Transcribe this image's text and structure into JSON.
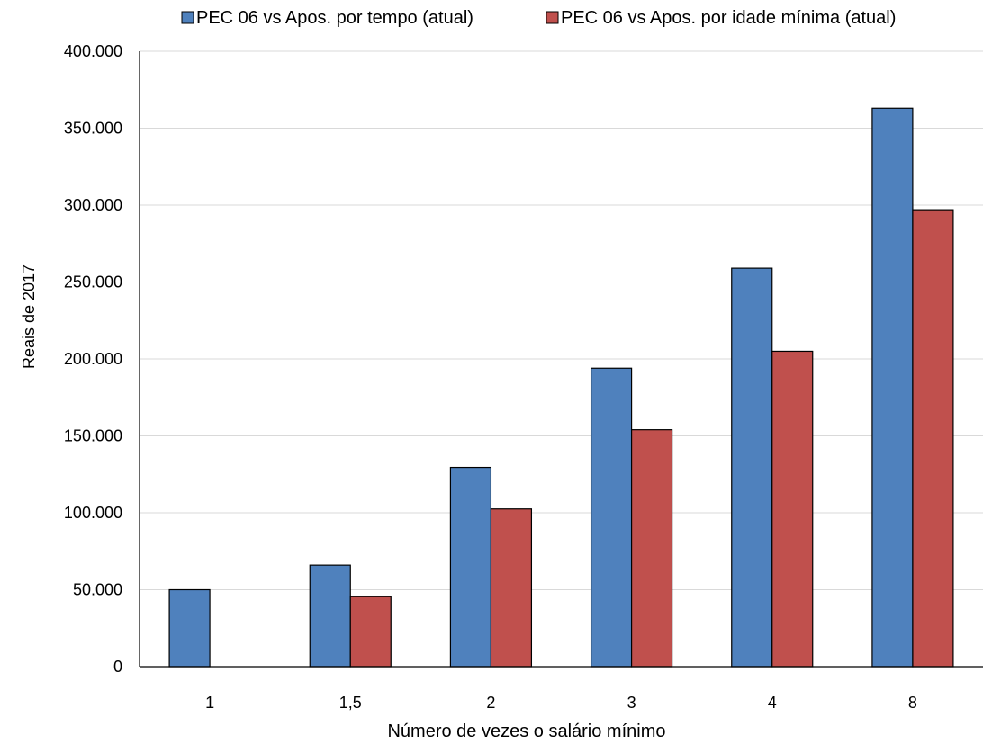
{
  "chart_data": {
    "type": "bar",
    "title": "",
    "xlabel": "Número de vezes o salário mínimo",
    "ylabel": "Reais de 2017",
    "categories": [
      "1",
      "1,5",
      "2",
      "3",
      "4",
      "8"
    ],
    "series": [
      {
        "name": "PEC 06 vs Apos. por tempo (atual)",
        "color": "#4f81bd",
        "values": [
          50000,
          66000,
          129500,
          194000,
          259000,
          363000
        ]
      },
      {
        "name": "PEC 06 vs Apos. por idade mínima (atual)",
        "color": "#c0504d",
        "values": [
          0,
          45500,
          102500,
          154000,
          205000,
          297000
        ]
      }
    ],
    "ylim": [
      0,
      400000
    ],
    "yticks": [
      0,
      50000,
      100000,
      150000,
      200000,
      250000,
      300000,
      350000,
      400000
    ],
    "ytick_labels": [
      "0",
      "50.000",
      "100.000",
      "150.000",
      "200.000",
      "250.000",
      "300.000",
      "350.000",
      "400.000"
    ],
    "grid": true,
    "legend_position": "top"
  }
}
